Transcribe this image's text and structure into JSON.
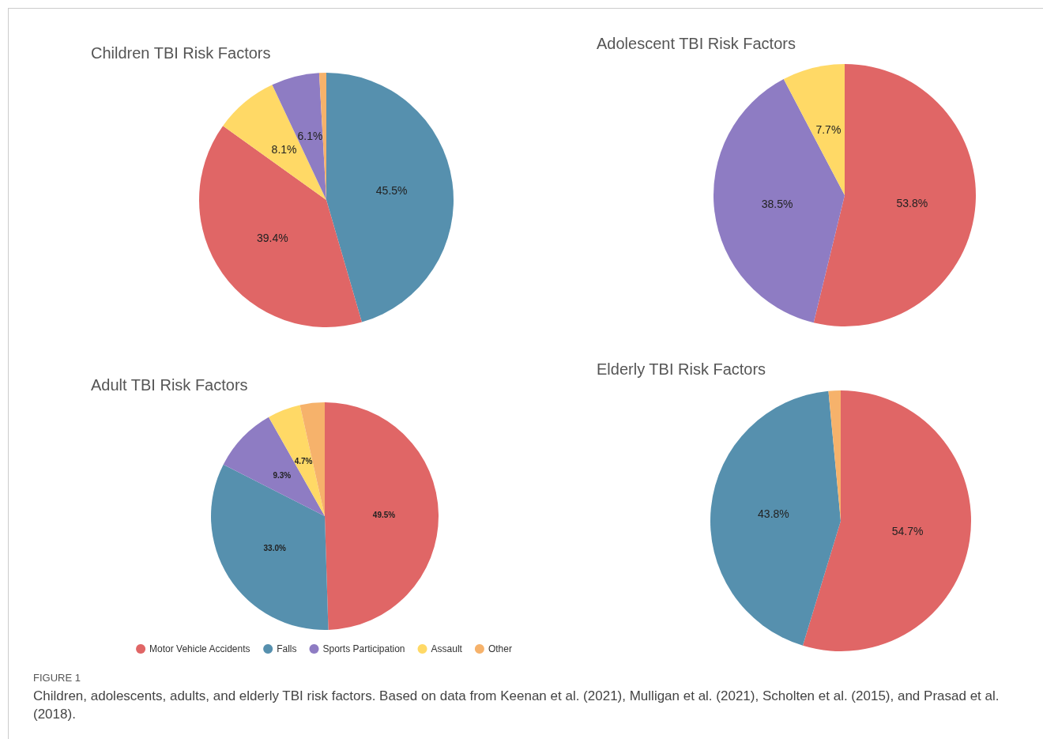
{
  "chart_data": [
    {
      "type": "pie",
      "title": "Children TBI Risk Factors",
      "categories": [
        null,
        null,
        null,
        null,
        null
      ],
      "values": [
        45.5,
        39.4,
        8.1,
        6.1,
        0.9
      ],
      "colors": [
        "#5690ae",
        "#e06666",
        "#ffd966",
        "#8e7cc3",
        "#f6b26b"
      ],
      "value_labels": [
        "45.5%",
        "39.4%",
        "8.1%",
        "6.1%",
        null
      ],
      "legend": false
    },
    {
      "type": "pie",
      "title": "Adolescent TBI Risk Factors",
      "categories": [
        null,
        null,
        null
      ],
      "values": [
        53.8,
        38.5,
        7.7
      ],
      "colors": [
        "#e06666",
        "#8e7cc3",
        "#ffd966"
      ],
      "value_labels": [
        "53.8%",
        "38.5%",
        "7.7%"
      ],
      "legend": false
    },
    {
      "type": "pie",
      "title": "Adult TBI Risk Factors",
      "categories": [
        "Motor Vehicle Accidents",
        "Falls",
        "Sports Participation",
        "Assault",
        "Other"
      ],
      "values": [
        49.5,
        33.0,
        9.3,
        4.7,
        3.5
      ],
      "colors": [
        "#e06666",
        "#5690ae",
        "#8e7cc3",
        "#ffd966",
        "#f6b26b"
      ],
      "value_labels": [
        "49.5%",
        "33.0%",
        "9.3%",
        "4.7%",
        null
      ],
      "legend": "bottom"
    },
    {
      "type": "pie",
      "title": "Elderly TBI Risk Factors",
      "categories": [
        null,
        null,
        null
      ],
      "values": [
        54.7,
        43.8,
        1.5
      ],
      "colors": [
        "#e06666",
        "#5690ae",
        "#f6b26b"
      ],
      "value_labels": [
        "54.7%",
        "43.8%",
        null
      ],
      "legend": false,
      "annotations": [
        "FIGURE 1",
        "Children, adolescents, adults, and elderly TBI risk factors. Based on data from Keenan et al. (2021), Mulligan et al. (2021), Scholten et al. (2015), and Prasad et al. (2018)."
      ]
    }
  ]
}
